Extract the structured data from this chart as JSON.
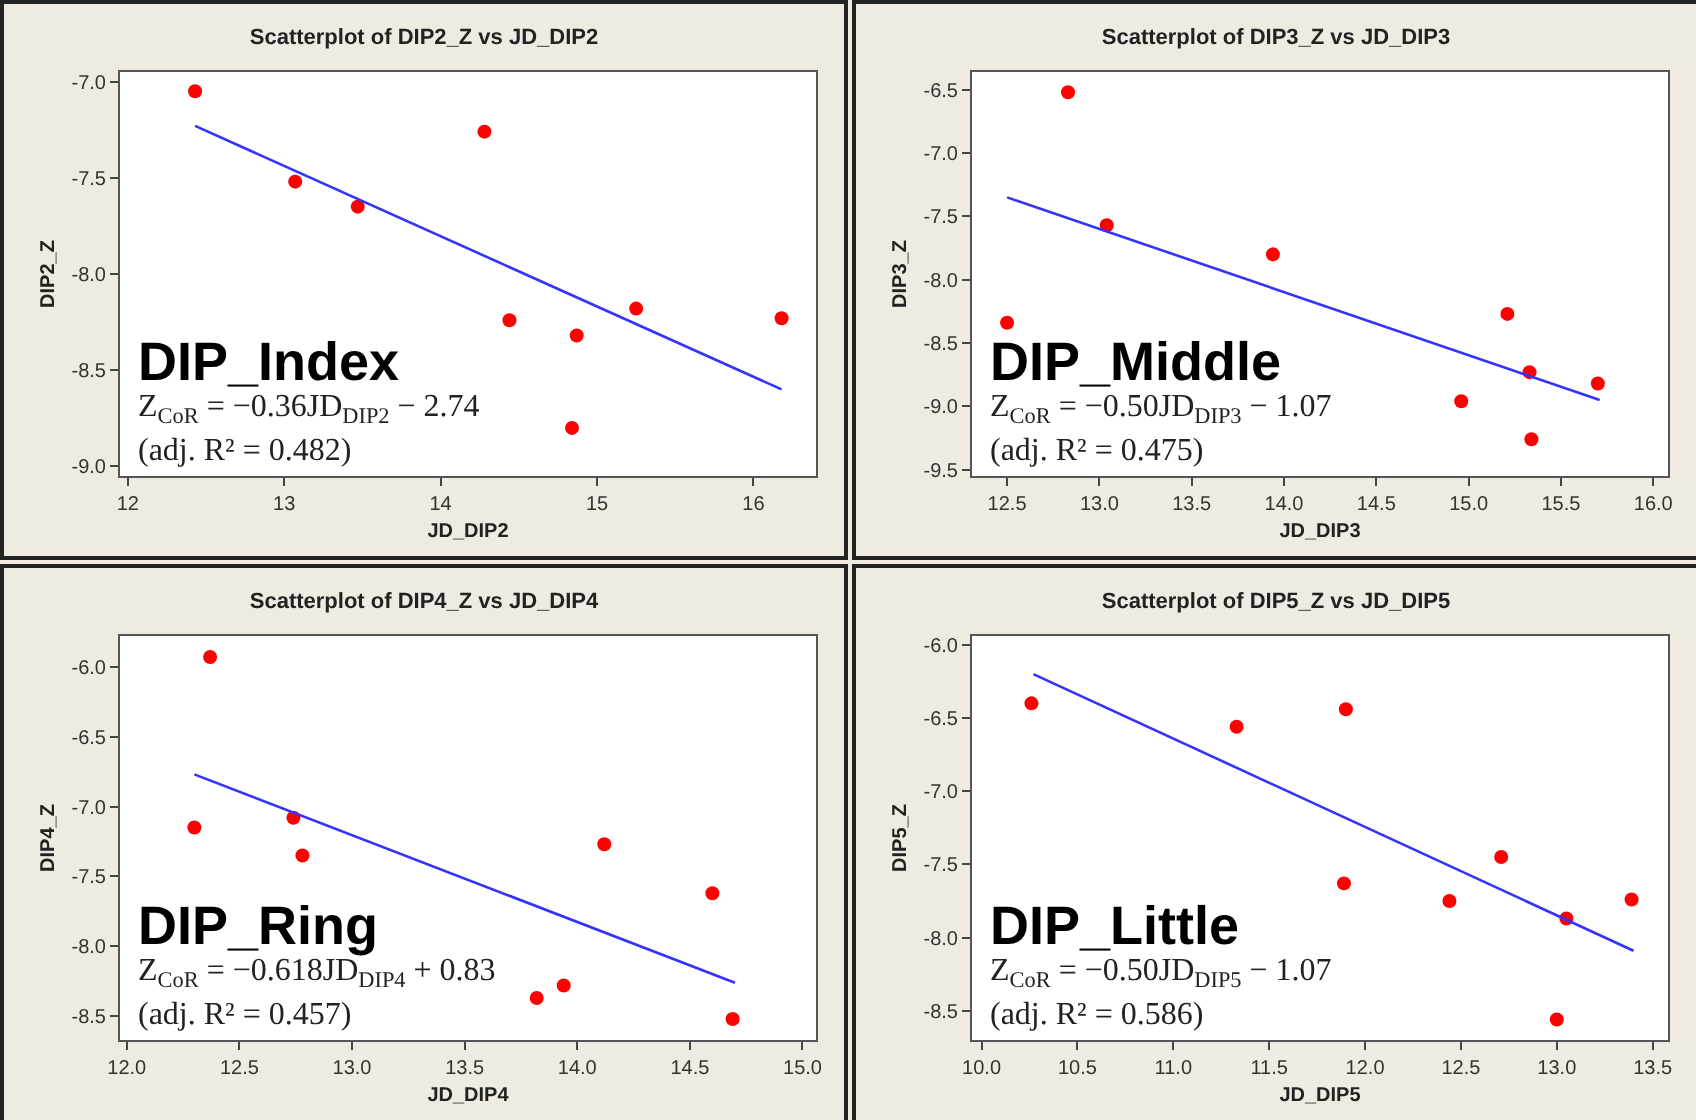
{
  "chart_data": [
    {
      "type": "scatter",
      "title": "Scatterplot of DIP2_Z vs JD_DIP2",
      "xlabel": "JD_DIP2",
      "ylabel": "DIP2_Z",
      "xlim": [
        11.95,
        16.4
      ],
      "xticks": [
        12,
        13,
        14,
        15,
        16
      ],
      "ylim": [
        -9.05,
        -6.95
      ],
      "yticks": [
        {
          "value": -7,
          "label": "-7.0"
        },
        {
          "value": -7.5,
          "label": "-7.5"
        },
        {
          "value": -8,
          "label": "-8.0"
        },
        {
          "value": -8.5,
          "label": "-8.5"
        },
        {
          "value": -9,
          "label": "-9.0"
        }
      ],
      "grid": false,
      "series": [
        {
          "marker": "circle",
          "color": "#ff0000",
          "x": [
            12.43,
            13.07,
            13.47,
            14.28,
            14.44,
            14.87,
            14.84,
            15.25,
            16.18
          ],
          "values": [
            -7.05,
            -7.52,
            -7.65,
            -7.26,
            -8.24,
            -8.32,
            -8.8,
            -8.18,
            -8.23
          ]
        },
        {
          "type": "line",
          "marker": "none",
          "line_style": "solid",
          "color": "#3333ff",
          "x": [
            12.43,
            16.18
          ],
          "values": [
            -7.23,
            -8.6
          ]
        }
      ],
      "annotations": [
        "DIP_Index",
        "Z$_{CoR}$ = −0.36JD$_{DIP2}$ − 2.74",
        "(adj. R² = 0.482)"
      ]
    },
    {
      "type": "scatter",
      "title": "Scatterplot of DIP3_Z vs JD_DIP3",
      "xlabel": "JD_DIP3",
      "ylabel": "DIP3_Z",
      "xlim": [
        12.31,
        16.08
      ],
      "xticks": [
        {
          "value": 12.5,
          "label": "12.5"
        },
        {
          "value": 13,
          "label": "13.0"
        },
        {
          "value": 13.5,
          "label": "13.5"
        },
        {
          "value": 14,
          "label": "14.0"
        },
        {
          "value": 14.5,
          "label": "14.5"
        },
        {
          "value": 15,
          "label": "15.0"
        },
        {
          "value": 15.5,
          "label": "15.5"
        },
        {
          "value": 16,
          "label": "16.0"
        }
      ],
      "ylim": [
        -9.55,
        -6.36
      ],
      "yticks": [
        -6.5,
        {
          "value": -7,
          "label": "-7.0"
        },
        -7.5,
        {
          "value": -8,
          "label": "-8.0"
        },
        -8.5,
        {
          "value": -9,
          "label": "-9.0"
        },
        -9.5
      ],
      "grid": false,
      "series": [
        {
          "marker": "circle",
          "color": "#ff0000",
          "x": [
            12.83,
            13.04,
            13.94,
            12.5,
            15.21,
            14.96,
            15.33,
            15.34,
            15.7
          ],
          "values": [
            -6.52,
            -7.57,
            -7.8,
            -8.34,
            -8.27,
            -8.96,
            -8.73,
            -9.26,
            -8.82
          ]
        },
        {
          "type": "line",
          "marker": "none",
          "line_style": "solid",
          "color": "#3333ff",
          "x": [
            12.5,
            15.71
          ],
          "values": [
            -7.35,
            -8.95
          ]
        }
      ],
      "annotations": [
        "DIP_Middle",
        "Z$_{CoR}$ = −0.50JD$_{DIP3}$ − 1.07",
        "(adj. R² = 0.475)"
      ]
    },
    {
      "type": "scatter",
      "title": "Scatterplot of DIP4_Z vs JD_DIP4",
      "xlabel": "JD_DIP4",
      "ylabel": "DIP4_Z",
      "xlim": [
        11.97,
        15.06
      ],
      "xticks": [
        {
          "value": 12,
          "label": "12.0"
        },
        {
          "value": 12.5,
          "label": "12.5"
        },
        {
          "value": 13,
          "label": "13.0"
        },
        {
          "value": 13.5,
          "label": "13.5"
        },
        {
          "value": 14,
          "label": "14.0"
        },
        {
          "value": 14.5,
          "label": "14.5"
        },
        {
          "value": 15,
          "label": "15.0"
        }
      ],
      "ylim": [
        -8.67,
        -5.78
      ],
      "yticks": [
        {
          "value": -6,
          "label": "-6.0"
        },
        -6.5,
        {
          "value": -7,
          "label": "-7.0"
        },
        -7.5,
        {
          "value": -8,
          "label": "-8.0"
        },
        -8.5
      ],
      "grid": false,
      "series": [
        {
          "marker": "circle",
          "color": "#ff0000",
          "x": [
            12.37,
            12.3,
            12.74,
            12.78,
            14.12,
            14.6,
            13.82,
            13.94,
            14.69
          ],
          "values": [
            -5.93,
            -7.15,
            -7.08,
            -7.35,
            -7.27,
            -7.62,
            -8.37,
            -8.28,
            -8.52
          ]
        },
        {
          "type": "line",
          "marker": "none",
          "line_style": "solid",
          "color": "#3333ff",
          "x": [
            12.3,
            14.7
          ],
          "values": [
            -6.77,
            -8.26
          ]
        }
      ],
      "annotations": [
        "DIP_Ring",
        "Z$_{CoR}$ = −0.618JD$_{DIP4}$ + 0.83",
        "(adj. R² = 0.457)"
      ]
    },
    {
      "type": "scatter",
      "title": "Scatterplot of DIP5_Z vs JD_DIP5",
      "xlabel": "JD_DIP5",
      "ylabel": "DIP5_Z",
      "xlim": [
        9.95,
        13.58
      ],
      "xticks": [
        {
          "value": 10,
          "label": "10.0"
        },
        10.5,
        {
          "value": 11,
          "label": "11.0"
        },
        11.5,
        {
          "value": 12,
          "label": "12.0"
        },
        12.5,
        {
          "value": 13,
          "label": "13.0"
        },
        13.5
      ],
      "ylim": [
        -8.7,
        -5.94
      ],
      "yticks": [
        {
          "value": -6,
          "label": "-6.0"
        },
        -6.5,
        {
          "value": -7,
          "label": "-7.0"
        },
        -7.5,
        {
          "value": -8,
          "label": "-8.0"
        },
        -8.5
      ],
      "grid": false,
      "series": [
        {
          "marker": "circle",
          "color": "#ff0000",
          "x": [
            10.26,
            11.33,
            11.9,
            11.89,
            12.44,
            12.71,
            13.05,
            13.0,
            13.39
          ],
          "values": [
            -6.4,
            -6.56,
            -6.44,
            -7.63,
            -7.75,
            -7.45,
            -7.87,
            -8.56,
            -7.74
          ]
        },
        {
          "type": "line",
          "marker": "none",
          "line_style": "solid",
          "color": "#3333ff",
          "x": [
            10.27,
            13.4
          ],
          "values": [
            -6.2,
            -8.09
          ]
        }
      ],
      "annotations": [
        "DIP_Little",
        "Z$_{CoR}$ = −0.50JD$_{DIP5}$ − 1.07",
        "(adj. R² = 0.586)"
      ]
    }
  ]
}
